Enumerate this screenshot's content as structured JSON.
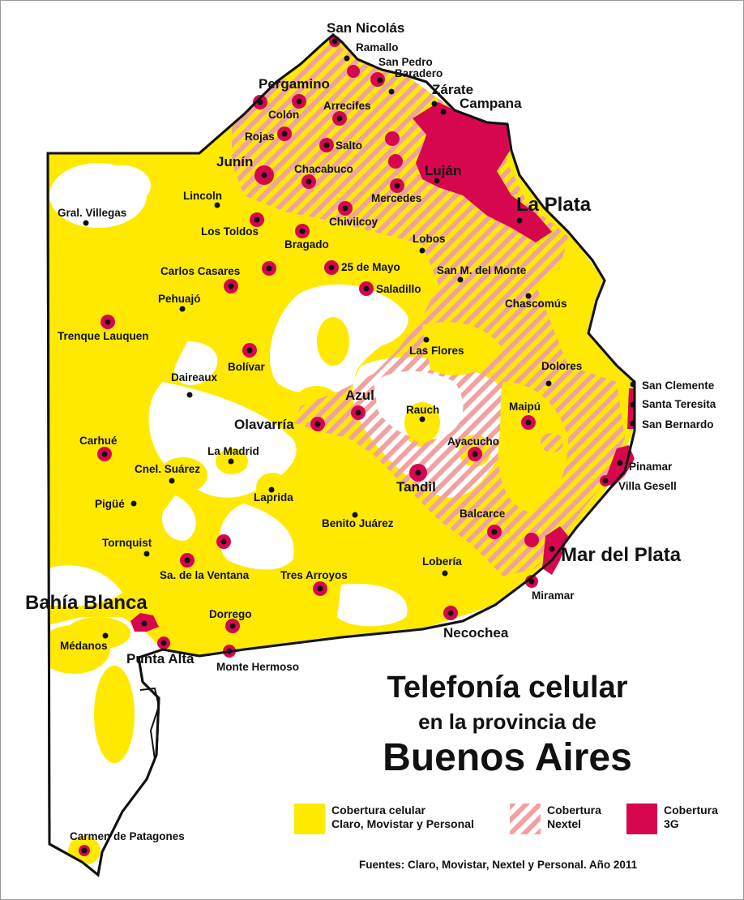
{
  "title": {
    "line1": "Telefonía celular",
    "line2": "en la provincia de",
    "line3": "Buenos Aires"
  },
  "legend": {
    "cellular": "Cobertura celular\nClaro, Movistar y Personal",
    "nextel": "Cobertura\nNextel",
    "g3": "Cobertura\n3G"
  },
  "source": "Fuentes: Claro, Movistar, Nextel y Personal. Año 2011",
  "colors": {
    "cellular": "#ffe900",
    "nextel": "#f0a2a0",
    "g3": "#d6074f",
    "border": "#111111"
  },
  "cities": {
    "san_nicolas": "San Nicolás",
    "ramallo": "Ramallo",
    "san_pedro": "San Pedro",
    "baradero": "Baradero",
    "zarate": "Zárate",
    "campana": "Campana",
    "pergamino": "Pergamino",
    "colon": "Colón",
    "arrecifes": "Arrecifes",
    "rojas": "Rojas",
    "salto": "Salto",
    "junin": "Junín",
    "chacabuco": "Chacabuco",
    "lujan": "Luján",
    "mercedes": "Mercedes",
    "la_plata": "La Plata",
    "lincoln": "Lincoln",
    "gral_villegas": "Gral. Villegas",
    "los_toldos": "Los Toldos",
    "chivilcoy": "Chivilcoy",
    "bragado": "Bragado",
    "lobos": "Lobos",
    "carlos_casares": "Carlos Casares",
    "veinticinco_de_mayo": "25 de Mayo",
    "san_m_del_monte": "San M. del Monte",
    "pehuajo": "Pehuajó",
    "saladillo": "Saladillo",
    "chascomus": "Chascomús",
    "trenque_lauquen": "Trenque Lauquen",
    "las_flores": "Las Flores",
    "bolivar": "Bolívar",
    "dolores": "Dolores",
    "daireaux": "Daireaux",
    "san_clemente": "San Clemente",
    "azul": "Azul",
    "santa_teresita": "Santa Teresita",
    "rauch": "Rauch",
    "olavarria": "Olavarría",
    "maipu": "Maipú",
    "san_bernardo": "San Bernardo",
    "carhue": "Carhué",
    "ayacucho": "Ayacucho",
    "la_madrid": "La Madrid",
    "pinamar": "Pinamar",
    "cnel_suarez": "Cnel. Suárez",
    "tandil": "Tandil",
    "villa_gesell": "Villa Gesell",
    "laprida": "Laprida",
    "pigue": "Pigüé",
    "balcarce": "Balcarce",
    "benito_juarez": "Benito Juárez",
    "tornquist": "Tornquist",
    "mar_del_plata": "Mar del Plata",
    "loberia": "Lobería",
    "sa_de_la_ventana": "Sa. de la Ventana",
    "tres_arroyos": "Tres Arroyos",
    "miramar": "Miramar",
    "bahia_blanca": "Bahía Blanca",
    "dorrego": "Dorrego",
    "necochea": "Necochea",
    "medanos": "Médanos",
    "punta_alta": "Punta Alta",
    "monte_hermoso": "Monte Hermoso",
    "carmen_de_patagones": "Carmen de Patagones"
  }
}
